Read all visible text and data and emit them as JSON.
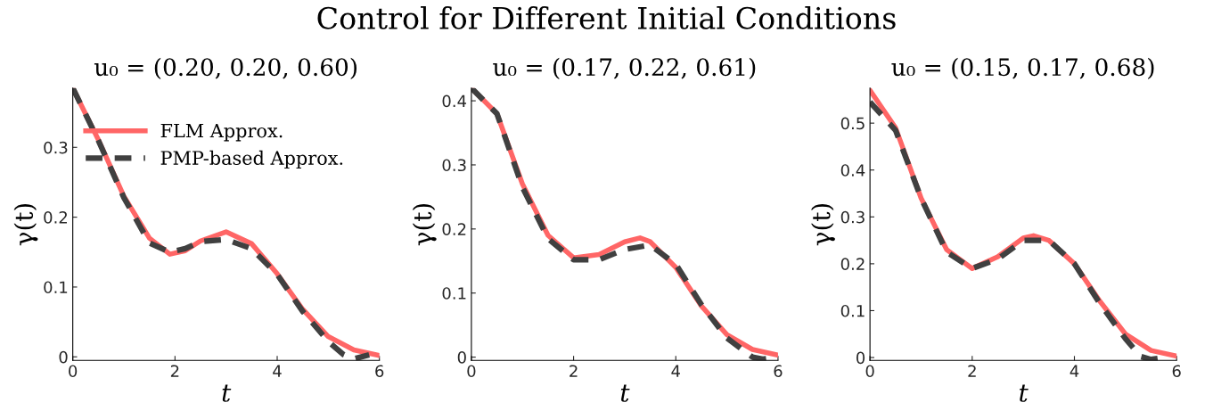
{
  "chart_data": [
    {
      "type": "line",
      "title": "u₀ = (0.20, 0.20, 0.60)",
      "xlabel": "t",
      "ylabel": "γ(t)",
      "annotations": [
        "Control for Different Initial Conditions"
      ],
      "xlim": [
        0,
        6
      ],
      "xticks": [
        0,
        2,
        4,
        6
      ],
      "ylim": [
        -0.005,
        0.385
      ],
      "yticks": [
        0,
        0.1,
        0.2,
        0.3
      ],
      "grid": false,
      "legend": "top right",
      "series": [
        {
          "name": "FLM Approx.",
          "color": "#ff6666",
          "line_style": "solid",
          "x": [
            0,
            0.5,
            1.0,
            1.5,
            1.9,
            2.2,
            2.5,
            3.0,
            3.5,
            4.0,
            4.5,
            5.0,
            5.5,
            6.0
          ],
          "values": [
            0.385,
            0.311,
            0.23,
            0.17,
            0.147,
            0.152,
            0.166,
            0.179,
            0.162,
            0.119,
            0.068,
            0.029,
            0.01,
            0.002
          ]
        },
        {
          "name": "PMP-based Approx.",
          "color": "#404040",
          "line_style": "dashed",
          "x": [
            0,
            0.5,
            1.0,
            1.5,
            1.9,
            2.2,
            2.5,
            3.0,
            3.5,
            4.0,
            4.5,
            5.0,
            5.3,
            5.5,
            5.8
          ],
          "values": [
            0.385,
            0.31,
            0.228,
            0.163,
            0.15,
            0.155,
            0.165,
            0.168,
            0.155,
            0.118,
            0.065,
            0.022,
            0.003,
            -0.003,
            0.003
          ]
        }
      ]
    },
    {
      "type": "line",
      "title": "u₀ = (0.17, 0.22, 0.61)",
      "xlabel": "t",
      "ylabel": "γ(t)",
      "xlim": [
        0,
        6
      ],
      "xticks": [
        0,
        2,
        4,
        6
      ],
      "ylim": [
        -0.005,
        0.42
      ],
      "yticks": [
        0,
        0.1,
        0.2,
        0.3,
        0.4
      ],
      "grid": false,
      "series": [
        {
          "color": "#ff6666",
          "line_style": "solid",
          "x": [
            0,
            0.5,
            1.0,
            1.5,
            2.0,
            2.5,
            3.0,
            3.3,
            3.5,
            4.0,
            4.5,
            5.0,
            5.5,
            6.0
          ],
          "values": [
            0.42,
            0.38,
            0.27,
            0.19,
            0.155,
            0.16,
            0.18,
            0.186,
            0.18,
            0.14,
            0.08,
            0.035,
            0.012,
            0.003
          ]
        },
        {
          "color": "#404040",
          "line_style": "dashed",
          "x": [
            0,
            0.5,
            1.0,
            1.5,
            2.0,
            2.5,
            3.0,
            3.5,
            4.0,
            4.5,
            5.0,
            5.5,
            5.7,
            5.8
          ],
          "values": [
            0.42,
            0.38,
            0.265,
            0.185,
            0.152,
            0.152,
            0.168,
            0.175,
            0.145,
            0.082,
            0.03,
            0.0,
            -0.003,
            -0.002
          ]
        }
      ]
    },
    {
      "type": "line",
      "title": "u₀ = (0.15, 0.17, 0.68)",
      "xlabel": "t",
      "ylabel": "γ(t)",
      "xlim": [
        0,
        6
      ],
      "xticks": [
        0,
        2,
        4,
        6
      ],
      "ylim": [
        -0.006,
        0.575
      ],
      "yticks": [
        0,
        0.1,
        0.2,
        0.3,
        0.4,
        0.5
      ],
      "grid": false,
      "series": [
        {
          "color": "#ff6666",
          "line_style": "solid",
          "x": [
            0,
            0.5,
            1.0,
            1.5,
            2.0,
            2.5,
            3.0,
            3.2,
            3.5,
            4.0,
            4.5,
            5.0,
            5.5,
            6.0
          ],
          "values": [
            0.57,
            0.49,
            0.34,
            0.23,
            0.19,
            0.215,
            0.255,
            0.26,
            0.25,
            0.2,
            0.12,
            0.05,
            0.015,
            0.003
          ]
        },
        {
          "color": "#404040",
          "line_style": "dashed",
          "x": [
            0,
            0.5,
            1.0,
            1.5,
            2.0,
            2.5,
            3.0,
            3.5,
            4.0,
            4.5,
            5.0,
            5.3,
            5.5,
            5.7
          ],
          "values": [
            0.545,
            0.485,
            0.34,
            0.225,
            0.19,
            0.21,
            0.25,
            0.25,
            0.2,
            0.115,
            0.04,
            0.002,
            -0.004,
            -0.001
          ]
        }
      ]
    }
  ]
}
